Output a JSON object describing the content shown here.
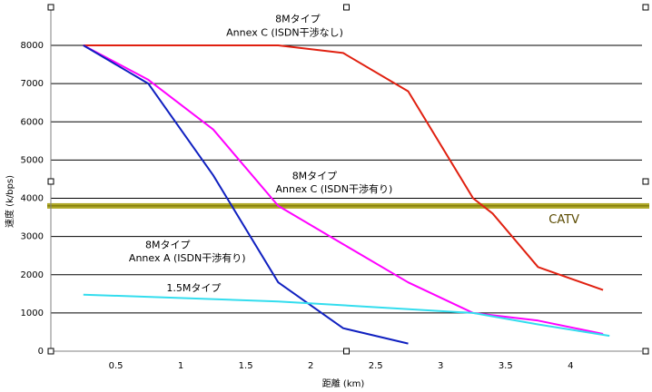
{
  "chart_data": {
    "type": "line",
    "xlabel": "距離 (km)",
    "ylabel": "速度 (k/bps)",
    "xlim": [
      0,
      4.55
    ],
    "ylim": [
      0,
      8000
    ],
    "x_ticks": [
      "0.5",
      "1",
      "1.5",
      "2",
      "2.5",
      "3",
      "3.5",
      "4"
    ],
    "x_tick_values": [
      0.5,
      1,
      1.5,
      2,
      2.5,
      3,
      3.5,
      4
    ],
    "y_ticks": [
      "0",
      "1000",
      "2000",
      "3000",
      "4000",
      "5000",
      "6000",
      "7000",
      "8000"
    ],
    "y_tick_values": [
      0,
      1000,
      2000,
      3000,
      4000,
      5000,
      6000,
      7000,
      8000
    ],
    "grid": "horizontal",
    "series": [
      {
        "name": "8Mタイプ Annex C (ISDN干渉なし)",
        "color": "#e02010",
        "points": [
          [
            0.25,
            8000
          ],
          [
            1.75,
            8000
          ],
          [
            2.25,
            7800
          ],
          [
            2.75,
            6800
          ],
          [
            3.25,
            4000
          ],
          [
            3.4,
            3600
          ],
          [
            3.75,
            2200
          ],
          [
            4.25,
            1600
          ]
        ]
      },
      {
        "name": "8Mタイプ Annex C (ISDN干渉有り)",
        "color": "#ff00ff",
        "points": [
          [
            0.25,
            8000
          ],
          [
            0.75,
            7100
          ],
          [
            1.25,
            5800
          ],
          [
            1.75,
            3800
          ],
          [
            2.25,
            2800
          ],
          [
            2.75,
            1800
          ],
          [
            3.25,
            1000
          ],
          [
            3.75,
            800
          ],
          [
            4.25,
            450
          ]
        ]
      },
      {
        "name": "8Mタイプ Annex A (ISDN干渉有り)",
        "color": "#1020c0",
        "points": [
          [
            0.25,
            8000
          ],
          [
            0.75,
            7000
          ],
          [
            1.25,
            4600
          ],
          [
            1.75,
            1800
          ],
          [
            2.25,
            600
          ],
          [
            2.75,
            200
          ]
        ]
      },
      {
        "name": "1.5Mタイプ",
        "color": "#33ddee",
        "points": [
          [
            0.25,
            1480
          ],
          [
            1.75,
            1300
          ],
          [
            3.25,
            1000
          ],
          [
            3.75,
            700
          ],
          [
            4.3,
            400
          ]
        ]
      }
    ],
    "reference_line": {
      "label": "CATV",
      "value": 3800,
      "color": "#a09800"
    },
    "annotations": [
      {
        "text": "8Mタイプ",
        "x": 1.9,
        "y": 8600
      },
      {
        "text": "Annex C (ISDN干渉なし)",
        "x": 1.8,
        "y": 8250
      },
      {
        "text": "8Mタイプ",
        "x": 2.03,
        "y": 4500
      },
      {
        "text": "Annex C (ISDN干渉有り)",
        "x": 2.18,
        "y": 4150
      },
      {
        "text": "8Mタイプ",
        "x": 0.9,
        "y": 2700
      },
      {
        "text": "Annex A (ISDN干渉有り)",
        "x": 1.05,
        "y": 2350
      },
      {
        "text": "1.5Mタイプ",
        "x": 1.1,
        "y": 1570
      }
    ]
  }
}
